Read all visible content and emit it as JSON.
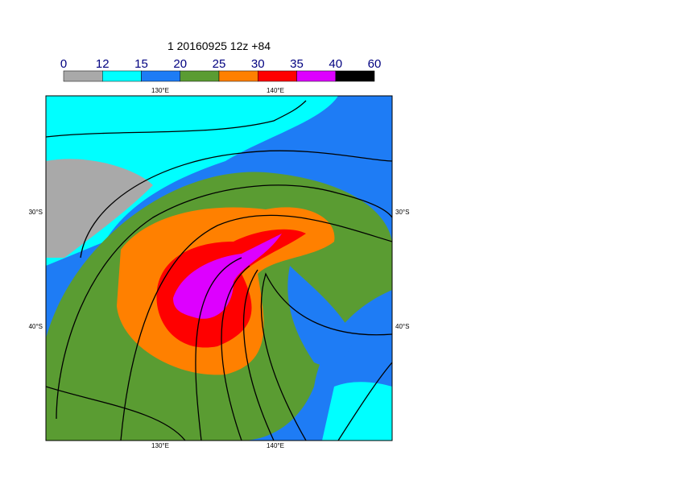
{
  "title": "1 20160925 12z +84",
  "colorbar": {
    "labels": [
      0,
      12,
      15,
      20,
      25,
      30,
      35,
      40,
      60
    ],
    "colors": [
      "#a9a9a9",
      "#00ffff",
      "#1e7cf5",
      "#5a9c32",
      "#ff8000",
      "#ff0000",
      "#dd00ff",
      "#000000"
    ]
  },
  "map": {
    "lon_labels": [
      "130°E",
      "140°E"
    ],
    "lat_labels": [
      "30°S",
      "40°S"
    ]
  }
}
